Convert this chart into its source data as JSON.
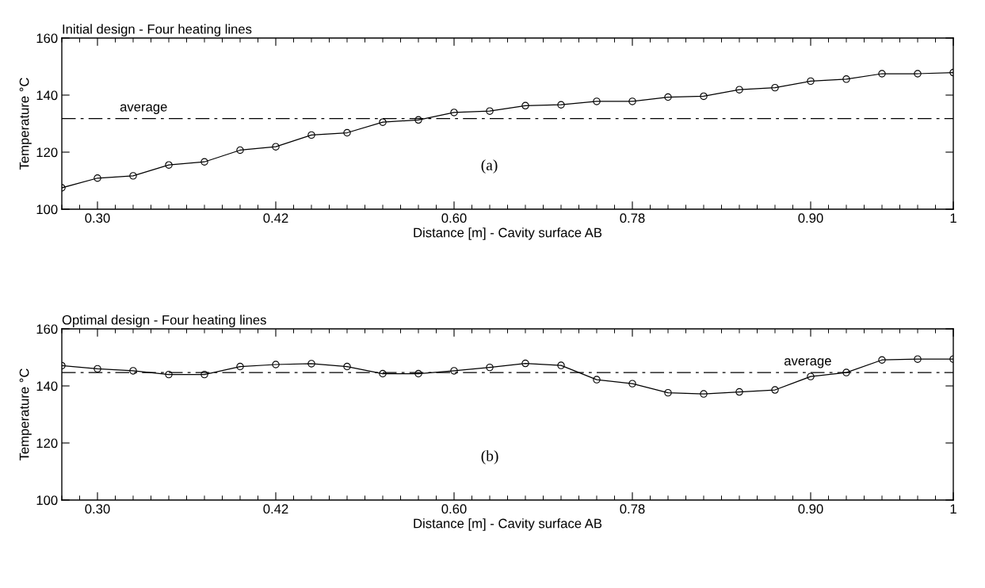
{
  "chart_data": [
    {
      "type": "line",
      "title": "Initial design - Four heating lines",
      "xlabel": "Distance [m] - Cavity surface AB",
      "ylabel": "Temperature °C",
      "categories": [
        null,
        "0.30",
        null,
        null,
        null,
        null,
        "0.42",
        null,
        null,
        null,
        null,
        "0.60",
        null,
        null,
        null,
        null,
        "0.78",
        null,
        null,
        null,
        null,
        "0.90",
        null,
        null,
        null,
        "1"
      ],
      "series": [
        {
          "color": "#000000",
          "values": [
            107.5,
            110.9,
            111.7,
            115.5,
            116.6,
            120.7,
            121.9,
            126.0,
            126.8,
            130.5,
            131.3,
            133.9,
            134.4,
            136.3,
            136.6,
            137.8,
            137.8,
            139.3,
            139.6,
            141.9,
            142.6,
            144.9,
            145.6,
            147.5,
            147.5,
            147.9
          ]
        }
      ],
      "marker": "circle",
      "ylim": [
        100,
        160
      ],
      "yticks": [
        100,
        120,
        140,
        160
      ],
      "ref_lines": [
        {
          "axis": "y",
          "value": 131.8,
          "label": "average",
          "color": "#000000",
          "line_style": "dashed"
        }
      ],
      "annotations": [
        "(a)"
      ]
    },
    {
      "type": "line",
      "title": "Optimal design - Four heating lines",
      "xlabel": "Distance [m] - Cavity surface AB",
      "ylabel": "Temperature °C",
      "categories": [
        null,
        "0.30",
        null,
        null,
        null,
        null,
        "0.42",
        null,
        null,
        null,
        null,
        "0.60",
        null,
        null,
        null,
        null,
        "0.78",
        null,
        null,
        null,
        null,
        "0.90",
        null,
        null,
        null,
        "1"
      ],
      "series": [
        {
          "color": "#000000",
          "values": [
            147.1,
            146.0,
            145.3,
            144.0,
            144.0,
            146.8,
            147.5,
            147.8,
            146.8,
            144.3,
            144.3,
            145.3,
            146.5,
            147.9,
            147.2,
            142.2,
            140.8,
            137.6,
            137.2,
            137.9,
            138.6,
            143.3,
            144.7,
            149.1,
            149.4,
            149.4
          ]
        }
      ],
      "marker": "circle",
      "ylim": [
        100,
        160
      ],
      "yticks": [
        100,
        120,
        140,
        160
      ],
      "ref_lines": [
        {
          "axis": "y",
          "value": 144.7,
          "label": "average",
          "color": "#000000",
          "line_style": "dashed"
        }
      ],
      "annotations": [
        "(b)"
      ]
    }
  ]
}
